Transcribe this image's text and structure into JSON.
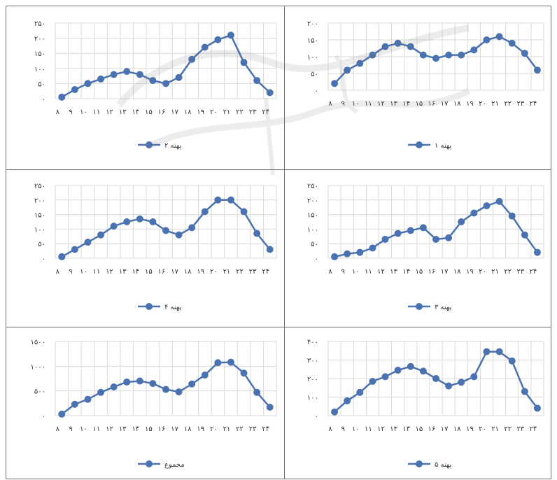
{
  "colors": {
    "series": "#4a72b0",
    "grid": "#d9d9d9",
    "border": "#6e6e6e"
  },
  "chart_data": [
    {
      "id": "c2",
      "type": "line",
      "categories": [
        "٨",
        "٩",
        "١٠",
        "١١",
        "١٢",
        "١٣",
        "١۴",
        "١۵",
        "١۶",
        "١٧",
        "١٨",
        "١٩",
        "٢٠",
        "٢١",
        "٢٢",
        "٢٣",
        "٢۴"
      ],
      "yticks": [
        "٠",
        "۵٠",
        "١٠٠",
        "١۵٠",
        "٢٠٠",
        "٢۵٠"
      ],
      "ylim": [
        0,
        250
      ],
      "series": [
        {
          "name": "پهنه ٢",
          "values": [
            5,
            30,
            50,
            65,
            80,
            90,
            80,
            60,
            50,
            70,
            130,
            170,
            195,
            210,
            120,
            60,
            20
          ]
        }
      ]
    },
    {
      "id": "c1",
      "type": "line",
      "categories": [
        "٨",
        "٩",
        "١٠",
        "١١",
        "١٢",
        "١٣",
        "١۴",
        "١۵",
        "١۶",
        "١٧",
        "١٨",
        "١٩",
        "٢٠",
        "٢١",
        "٢٢",
        "٢٣",
        "٢۴"
      ],
      "yticks": [
        "٠",
        "۵٠",
        "١٠٠",
        "١۵٠",
        "٢٠٠"
      ],
      "ylim": [
        0,
        200
      ],
      "series": [
        {
          "name": "پهنه ١",
          "values": [
            20,
            60,
            80,
            105,
            130,
            140,
            130,
            105,
            95,
            105,
            105,
            120,
            150,
            160,
            140,
            110,
            60
          ]
        }
      ]
    },
    {
      "id": "c4",
      "type": "line",
      "categories": [
        "٨",
        "٩",
        "١٠",
        "١١",
        "١٢",
        "١٣",
        "١۴",
        "١۵",
        "١۶",
        "١٧",
        "١٨",
        "١٩",
        "٢٠",
        "٢١",
        "٢٢",
        "٢٣",
        "٢۴"
      ],
      "yticks": [
        "٠",
        "۵٠",
        "١٠٠",
        "١۵٠",
        "٢٠٠",
        "٢۵٠"
      ],
      "ylim": [
        0,
        250
      ],
      "series": [
        {
          "name": "پهنه ۴",
          "values": [
            5,
            30,
            55,
            80,
            110,
            125,
            135,
            125,
            95,
            80,
            105,
            160,
            200,
            200,
            160,
            85,
            30
          ]
        }
      ]
    },
    {
      "id": "c3",
      "type": "line",
      "categories": [
        "٨",
        "٩",
        "١٠",
        "١١",
        "١٢",
        "١٣",
        "١۴",
        "١۵",
        "١۶",
        "١٧",
        "١٨",
        "١٩",
        "٢٠",
        "٢١",
        "٢٢",
        "٢٣",
        "٢۴"
      ],
      "yticks": [
        "٠",
        "۵٠",
        "١٠٠",
        "١۵٠",
        "٢٠٠",
        "٢۵٠"
      ],
      "ylim": [
        0,
        250
      ],
      "series": [
        {
          "name": "پهنه ٣",
          "values": [
            5,
            15,
            20,
            35,
            65,
            85,
            95,
            105,
            65,
            70,
            125,
            155,
            180,
            195,
            145,
            80,
            20
          ]
        }
      ]
    },
    {
      "id": "ct",
      "type": "line",
      "categories": [
        "٨",
        "٩",
        "١٠",
        "١١",
        "١٢",
        "١٣",
        "١۴",
        "١۵",
        "١۶",
        "١٧",
        "١٨",
        "١٩",
        "٢٠",
        "٢١",
        "٢٢",
        "٢٣",
        "٢۴"
      ],
      "yticks": [
        "٠",
        "۵٠٠",
        "١٠٠٠",
        "١۵٠٠"
      ],
      "ylim": [
        0,
        1500
      ],
      "series": [
        {
          "name": "مجموع",
          "values": [
            30,
            230,
            330,
            470,
            580,
            680,
            700,
            650,
            530,
            480,
            640,
            820,
            1070,
            1080,
            860,
            470,
            170
          ]
        }
      ]
    },
    {
      "id": "c5",
      "type": "line",
      "categories": [
        "٨",
        "٩",
        "١٠",
        "١١",
        "١٢",
        "١٣",
        "١۴",
        "١۵",
        "١۶",
        "١٧",
        "١٨",
        "١٩",
        "٢٠",
        "٢١",
        "٢٢",
        "٢٣",
        "٢۴"
      ],
      "yticks": [
        "٠",
        "١٠٠",
        "٢٠٠",
        "٣٠٠",
        "۴٠٠"
      ],
      "ylim": [
        0,
        400
      ],
      "series": [
        {
          "name": "پهنه ۵",
          "values": [
            20,
            80,
            125,
            185,
            210,
            245,
            265,
            240,
            200,
            160,
            180,
            210,
            345,
            345,
            295,
            130,
            40
          ]
        }
      ]
    }
  ]
}
